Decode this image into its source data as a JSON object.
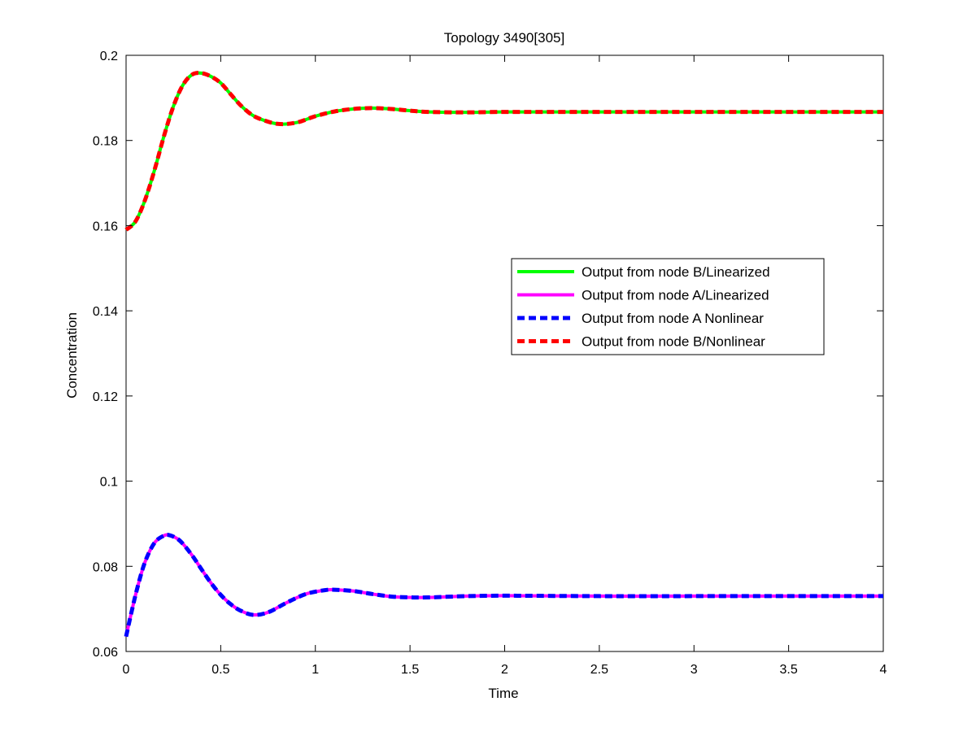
{
  "chart_data": {
    "type": "line",
    "title": "Topology 3490[305]",
    "xlabel": "Time",
    "ylabel": "Concentration",
    "xlim": [
      0,
      4
    ],
    "ylim": [
      0.06,
      0.2
    ],
    "xticks": [
      0,
      0.5,
      1,
      1.5,
      2,
      2.5,
      3,
      3.5,
      4
    ],
    "xtick_labels": [
      "0",
      "0.5",
      "1",
      "1.5",
      "2",
      "2.5",
      "3",
      "3.5",
      "4"
    ],
    "yticks": [
      0.06,
      0.08,
      0.1,
      0.12,
      0.14,
      0.16,
      0.18,
      0.2
    ],
    "ytick_labels": [
      "0.06",
      "0.08",
      "0.1",
      "0.12",
      "0.14",
      "0.16",
      "0.18",
      "0.2"
    ],
    "grid": false,
    "legend_position": "center-right",
    "series": [
      {
        "name": "Output from node B/Linearized",
        "color": "#00ff00",
        "style": "solid",
        "x": [
          0,
          0.05,
          0.1,
          0.15,
          0.2,
          0.25,
          0.3,
          0.35,
          0.4,
          0.45,
          0.5,
          0.55,
          0.6,
          0.65,
          0.7,
          0.8,
          0.9,
          1.0,
          1.1,
          1.2,
          1.3,
          1.4,
          1.5,
          1.6,
          1.8,
          2.0,
          2.5,
          3.0,
          3.5,
          4.0
        ],
        "y": [
          0.159,
          0.161,
          0.166,
          0.173,
          0.181,
          0.188,
          0.193,
          0.1955,
          0.1958,
          0.195,
          0.1935,
          0.191,
          0.1885,
          0.1865,
          0.1852,
          0.1839,
          0.1842,
          0.1857,
          0.1868,
          0.1874,
          0.1876,
          0.1874,
          0.187,
          0.1867,
          0.1866,
          0.1867,
          0.1867,
          0.1867,
          0.1867,
          0.1867
        ]
      },
      {
        "name": "Output from node A/Linearized",
        "color": "#ff00ff",
        "style": "solid",
        "x": [
          0,
          0.03,
          0.06,
          0.1,
          0.15,
          0.2,
          0.23,
          0.27,
          0.3,
          0.35,
          0.4,
          0.45,
          0.5,
          0.55,
          0.6,
          0.67,
          0.75,
          0.85,
          0.95,
          1.05,
          1.1,
          1.2,
          1.3,
          1.4,
          1.5,
          1.6,
          1.8,
          2.0,
          2.5,
          3.0,
          3.5,
          4.0
        ],
        "y": [
          0.0635,
          0.0695,
          0.075,
          0.081,
          0.0855,
          0.0872,
          0.0873,
          0.0865,
          0.0853,
          0.0825,
          0.0792,
          0.076,
          0.0733,
          0.0712,
          0.0697,
          0.0686,
          0.0692,
          0.0715,
          0.0735,
          0.0744,
          0.0745,
          0.0742,
          0.0735,
          0.0729,
          0.0727,
          0.0727,
          0.073,
          0.0731,
          0.073,
          0.073,
          0.073,
          0.073
        ]
      },
      {
        "name": "Output from node A  Nonlinear",
        "color": "#0000ff",
        "style": "dashed",
        "x": [
          0,
          0.03,
          0.06,
          0.1,
          0.15,
          0.2,
          0.23,
          0.27,
          0.3,
          0.35,
          0.4,
          0.45,
          0.5,
          0.55,
          0.6,
          0.67,
          0.75,
          0.85,
          0.95,
          1.05,
          1.1,
          1.2,
          1.3,
          1.4,
          1.5,
          1.6,
          1.8,
          2.0,
          2.5,
          3.0,
          3.5,
          4.0
        ],
        "y": [
          0.0635,
          0.0695,
          0.075,
          0.081,
          0.0855,
          0.0872,
          0.0873,
          0.0865,
          0.0853,
          0.0825,
          0.0792,
          0.076,
          0.0733,
          0.0712,
          0.0697,
          0.0686,
          0.0692,
          0.0715,
          0.0735,
          0.0744,
          0.0745,
          0.0742,
          0.0735,
          0.0729,
          0.0727,
          0.0727,
          0.073,
          0.0731,
          0.073,
          0.073,
          0.073,
          0.073
        ]
      },
      {
        "name": "Output from node B/Nonlinear",
        "color": "#ff0000",
        "style": "dashed",
        "x": [
          0,
          0.05,
          0.1,
          0.15,
          0.2,
          0.25,
          0.3,
          0.35,
          0.4,
          0.45,
          0.5,
          0.55,
          0.6,
          0.65,
          0.7,
          0.8,
          0.9,
          1.0,
          1.1,
          1.2,
          1.3,
          1.4,
          1.5,
          1.6,
          1.8,
          2.0,
          2.5,
          3.0,
          3.5,
          4.0
        ],
        "y": [
          0.159,
          0.161,
          0.166,
          0.173,
          0.181,
          0.188,
          0.193,
          0.1955,
          0.1958,
          0.195,
          0.1935,
          0.191,
          0.1885,
          0.1865,
          0.1852,
          0.1839,
          0.1842,
          0.1857,
          0.1868,
          0.1874,
          0.1876,
          0.1874,
          0.187,
          0.1867,
          0.1866,
          0.1867,
          0.1867,
          0.1867,
          0.1867,
          0.1867
        ]
      }
    ]
  }
}
